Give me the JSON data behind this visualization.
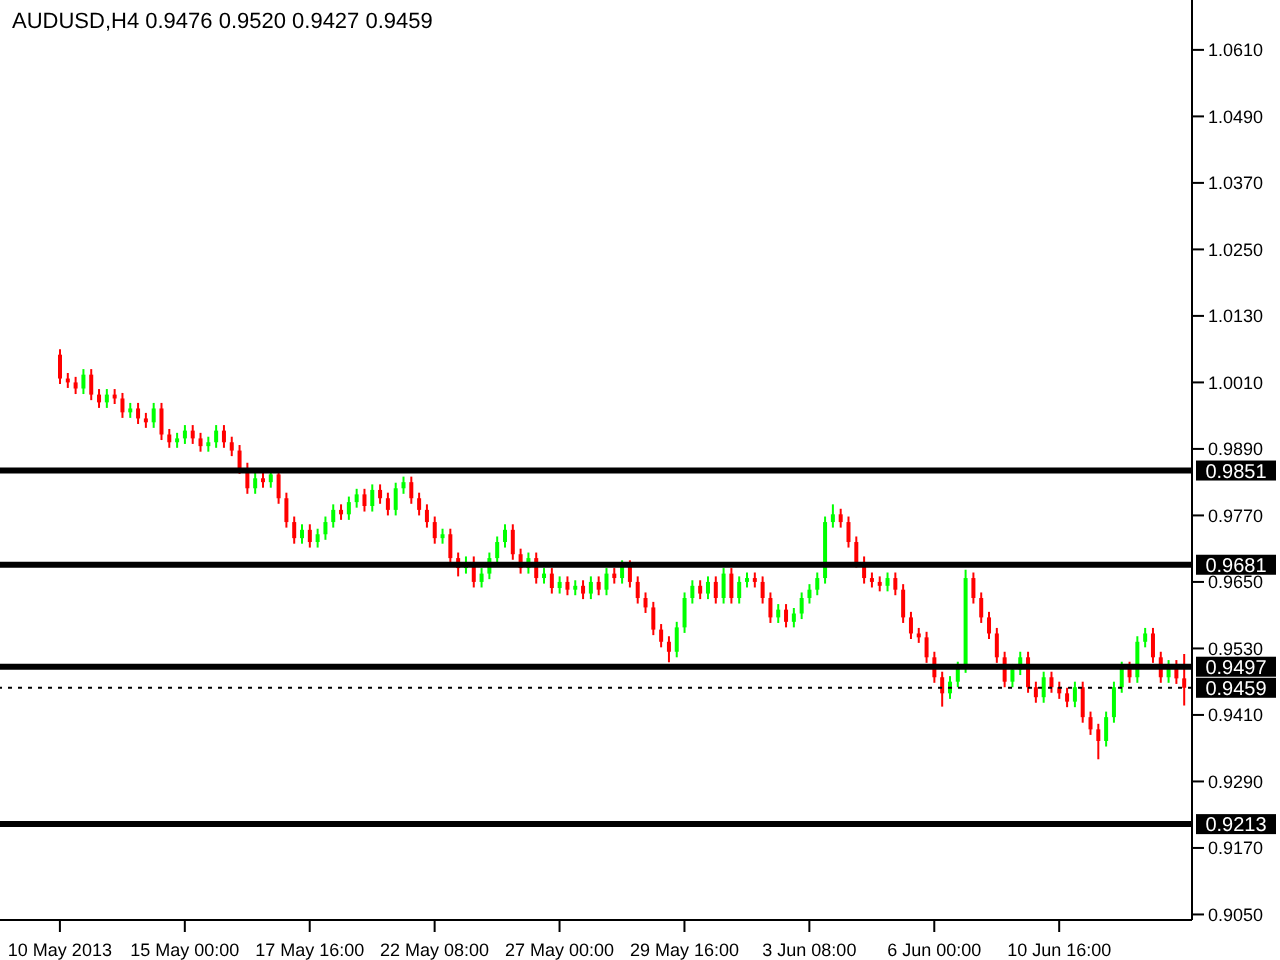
{
  "chart_data": {
    "type": "candlestick",
    "title": "AUDUSD,H4  0.9476 0.9520 0.9427 0.9459",
    "categories": [
      "10 May 2013",
      null,
      null,
      null,
      null,
      null,
      null,
      null,
      null,
      null,
      null,
      null,
      null,
      null,
      null,
      null,
      "15 May 00:00",
      null,
      null,
      null,
      null,
      null,
      null,
      null,
      null,
      null,
      null,
      null,
      null,
      null,
      null,
      null,
      "17 May 16:00",
      null,
      null,
      null,
      null,
      null,
      null,
      null,
      null,
      null,
      null,
      null,
      null,
      null,
      null,
      null,
      "22 May 08:00",
      null,
      null,
      null,
      null,
      null,
      null,
      null,
      null,
      null,
      null,
      null,
      null,
      null,
      null,
      null,
      "27 May 00:00",
      null,
      null,
      null,
      null,
      null,
      null,
      null,
      null,
      null,
      null,
      null,
      null,
      null,
      null,
      null,
      "29 May 16:00",
      null,
      null,
      null,
      null,
      null,
      null,
      null,
      null,
      null,
      null,
      null,
      null,
      null,
      null,
      null,
      "3 Jun 08:00",
      null,
      null,
      null,
      null,
      null,
      null,
      null,
      null,
      null,
      null,
      null,
      null,
      null,
      null,
      null,
      "6 Jun 00:00",
      null,
      null,
      null,
      null,
      null,
      null,
      null,
      null,
      null,
      null,
      null,
      null,
      null,
      null,
      null,
      "10 Jun 16:00",
      null,
      null,
      null,
      null,
      null,
      null,
      null,
      null,
      null,
      null,
      null,
      null,
      null,
      null,
      null,
      null
    ],
    "ohlc": [
      [
        1.006,
        1.007,
        1.0007,
        1.0017
      ],
      [
        1.0017,
        1.0027,
        1.0,
        1.001
      ],
      [
        1.001,
        1.002,
        0.9989,
        0.9999
      ],
      [
        0.9999,
        1.0034,
        0.9989,
        1.0024
      ],
      [
        1.0024,
        1.0034,
        0.9978,
        0.9988
      ],
      [
        0.9988,
        0.9998,
        0.9964,
        0.9974
      ],
      [
        0.9974,
        0.9998,
        0.9964,
        0.9988
      ],
      [
        0.9988,
        0.9998,
        0.9971,
        0.9981
      ],
      [
        0.9981,
        0.9991,
        0.9946,
        0.9956
      ],
      [
        0.9956,
        0.9973,
        0.9946,
        0.9963
      ],
      [
        0.9963,
        0.9973,
        0.9935,
        0.9945
      ],
      [
        0.9945,
        0.9955,
        0.9928,
        0.9938
      ],
      [
        0.9938,
        0.9973,
        0.9928,
        0.9963
      ],
      [
        0.9963,
        0.9973,
        0.9906,
        0.9916
      ],
      [
        0.9916,
        0.9926,
        0.9892,
        0.9902
      ],
      [
        0.9902,
        0.9919,
        0.9892,
        0.9909
      ],
      [
        0.9909,
        0.9933,
        0.9899,
        0.9923
      ],
      [
        0.9923,
        0.9933,
        0.9899,
        0.9909
      ],
      [
        0.9909,
        0.9919,
        0.9885,
        0.9895
      ],
      [
        0.9895,
        0.9912,
        0.9885,
        0.9902
      ],
      [
        0.9902,
        0.9933,
        0.9892,
        0.9923
      ],
      [
        0.9923,
        0.9933,
        0.9892,
        0.9902
      ],
      [
        0.9902,
        0.9912,
        0.9877,
        0.9887
      ],
      [
        0.9887,
        0.9897,
        0.9845,
        0.9855
      ],
      [
        0.9855,
        0.9865,
        0.9809,
        0.9819
      ],
      [
        0.9819,
        0.9847,
        0.9809,
        0.9837
      ],
      [
        0.9837,
        0.9847,
        0.982,
        0.983
      ],
      [
        0.983,
        0.9854,
        0.982,
        0.9844
      ],
      [
        0.9844,
        0.9854,
        0.9791,
        0.9801
      ],
      [
        0.9801,
        0.9811,
        0.9748,
        0.9758
      ],
      [
        0.9758,
        0.9768,
        0.9719,
        0.9729
      ],
      [
        0.9729,
        0.9754,
        0.9719,
        0.9744
      ],
      [
        0.9744,
        0.9754,
        0.9712,
        0.9722
      ],
      [
        0.9722,
        0.9746,
        0.9712,
        0.9736
      ],
      [
        0.9736,
        0.9768,
        0.9726,
        0.9758
      ],
      [
        0.9758,
        0.979,
        0.9748,
        0.978
      ],
      [
        0.978,
        0.979,
        0.9762,
        0.9772
      ],
      [
        0.9772,
        0.9804,
        0.9762,
        0.9794
      ],
      [
        0.9794,
        0.9818,
        0.9784,
        0.9808
      ],
      [
        0.9808,
        0.9818,
        0.9777,
        0.9787
      ],
      [
        0.9787,
        0.9826,
        0.9777,
        0.9816
      ],
      [
        0.9816,
        0.9826,
        0.9791,
        0.9801
      ],
      [
        0.9801,
        0.9811,
        0.977,
        0.978
      ],
      [
        0.978,
        0.9829,
        0.977,
        0.9819
      ],
      [
        0.9819,
        0.984,
        0.9809,
        0.983
      ],
      [
        0.983,
        0.984,
        0.9791,
        0.9801
      ],
      [
        0.9801,
        0.9811,
        0.977,
        0.978
      ],
      [
        0.978,
        0.979,
        0.9748,
        0.9758
      ],
      [
        0.9758,
        0.9768,
        0.9719,
        0.9729
      ],
      [
        0.9729,
        0.9746,
        0.9719,
        0.9736
      ],
      [
        0.9736,
        0.9746,
        0.9683,
        0.9693
      ],
      [
        0.9693,
        0.9703,
        0.966,
        0.9675
      ],
      [
        0.9675,
        0.9696,
        0.9665,
        0.9686
      ],
      [
        0.9686,
        0.9696,
        0.964,
        0.965
      ],
      [
        0.965,
        0.9675,
        0.964,
        0.9665
      ],
      [
        0.9665,
        0.9703,
        0.9655,
        0.9693
      ],
      [
        0.9693,
        0.9732,
        0.9683,
        0.9722
      ],
      [
        0.9722,
        0.9754,
        0.9712,
        0.9744
      ],
      [
        0.9744,
        0.9754,
        0.969,
        0.97
      ],
      [
        0.97,
        0.971,
        0.9665,
        0.9675
      ],
      [
        0.9675,
        0.9703,
        0.9665,
        0.9693
      ],
      [
        0.9693,
        0.9703,
        0.9647,
        0.9657
      ],
      [
        0.9657,
        0.9675,
        0.9647,
        0.9665
      ],
      [
        0.9665,
        0.9675,
        0.9629,
        0.9639
      ],
      [
        0.9639,
        0.966,
        0.9629,
        0.965
      ],
      [
        0.965,
        0.966,
        0.9626,
        0.9636
      ],
      [
        0.9636,
        0.9653,
        0.9626,
        0.9643
      ],
      [
        0.9643,
        0.9653,
        0.9619,
        0.9629
      ],
      [
        0.9629,
        0.966,
        0.9619,
        0.965
      ],
      [
        0.965,
        0.966,
        0.9626,
        0.9636
      ],
      [
        0.9636,
        0.9675,
        0.9626,
        0.9665
      ],
      [
        0.9665,
        0.9675,
        0.9647,
        0.9657
      ],
      [
        0.9657,
        0.9689,
        0.9647,
        0.9679
      ],
      [
        0.9679,
        0.9689,
        0.964,
        0.965
      ],
      [
        0.965,
        0.966,
        0.9611,
        0.9621
      ],
      [
        0.9621,
        0.9631,
        0.9594,
        0.9604
      ],
      [
        0.9604,
        0.9614,
        0.9554,
        0.9564
      ],
      [
        0.9564,
        0.9574,
        0.9532,
        0.9542
      ],
      [
        0.9542,
        0.9552,
        0.9505,
        0.9524
      ],
      [
        0.9524,
        0.9578,
        0.9514,
        0.9568
      ],
      [
        0.9568,
        0.9631,
        0.9558,
        0.9621
      ],
      [
        0.9621,
        0.9653,
        0.9611,
        0.9643
      ],
      [
        0.9643,
        0.9653,
        0.9619,
        0.9629
      ],
      [
        0.9629,
        0.966,
        0.9619,
        0.965
      ],
      [
        0.965,
        0.966,
        0.9611,
        0.9621
      ],
      [
        0.9621,
        0.9675,
        0.9611,
        0.9665
      ],
      [
        0.9665,
        0.9675,
        0.9611,
        0.9621
      ],
      [
        0.9621,
        0.966,
        0.9611,
        0.965
      ],
      [
        0.965,
        0.9667,
        0.964,
        0.9657
      ],
      [
        0.9657,
        0.9667,
        0.964,
        0.965
      ],
      [
        0.965,
        0.966,
        0.9611,
        0.9621
      ],
      [
        0.9621,
        0.9631,
        0.9576,
        0.9586
      ],
      [
        0.9586,
        0.961,
        0.9576,
        0.96
      ],
      [
        0.96,
        0.961,
        0.9568,
        0.9578
      ],
      [
        0.9578,
        0.9603,
        0.9568,
        0.9593
      ],
      [
        0.9593,
        0.9631,
        0.9583,
        0.9621
      ],
      [
        0.9621,
        0.9646,
        0.9611,
        0.9636
      ],
      [
        0.9636,
        0.9667,
        0.9626,
        0.9657
      ],
      [
        0.9657,
        0.9768,
        0.9647,
        0.9758
      ],
      [
        0.9758,
        0.979,
        0.9748,
        0.9772
      ],
      [
        0.9772,
        0.9782,
        0.9748,
        0.9758
      ],
      [
        0.9758,
        0.9768,
        0.9712,
        0.9722
      ],
      [
        0.9722,
        0.9732,
        0.9676,
        0.9686
      ],
      [
        0.9686,
        0.9696,
        0.9647,
        0.9657
      ],
      [
        0.9657,
        0.9667,
        0.964,
        0.965
      ],
      [
        0.965,
        0.966,
        0.9633,
        0.9643
      ],
      [
        0.9643,
        0.9667,
        0.9633,
        0.9657
      ],
      [
        0.9657,
        0.9667,
        0.9626,
        0.9636
      ],
      [
        0.9636,
        0.9646,
        0.9576,
        0.9586
      ],
      [
        0.9586,
        0.9596,
        0.9547,
        0.9557
      ],
      [
        0.9557,
        0.9567,
        0.954,
        0.955
      ],
      [
        0.955,
        0.956,
        0.9504,
        0.9514
      ],
      [
        0.9514,
        0.9524,
        0.9468,
        0.9478
      ],
      [
        0.9478,
        0.9488,
        0.9425,
        0.9449
      ],
      [
        0.9449,
        0.948,
        0.9439,
        0.947
      ],
      [
        0.947,
        0.9506,
        0.946,
        0.9496
      ],
      [
        0.9496,
        0.9672,
        0.9486,
        0.9657
      ],
      [
        0.9657,
        0.9667,
        0.9611,
        0.9621
      ],
      [
        0.9621,
        0.9631,
        0.9576,
        0.9586
      ],
      [
        0.9586,
        0.9596,
        0.9547,
        0.9557
      ],
      [
        0.9557,
        0.9567,
        0.9504,
        0.9514
      ],
      [
        0.9514,
        0.9524,
        0.946,
        0.947
      ],
      [
        0.947,
        0.9502,
        0.946,
        0.9492
      ],
      [
        0.9492,
        0.9524,
        0.9482,
        0.9514
      ],
      [
        0.9514,
        0.9524,
        0.945,
        0.946
      ],
      [
        0.946,
        0.947,
        0.9432,
        0.9442
      ],
      [
        0.9442,
        0.9488,
        0.9432,
        0.9478
      ],
      [
        0.9478,
        0.9488,
        0.945,
        0.946
      ],
      [
        0.946,
        0.947,
        0.9439,
        0.9449
      ],
      [
        0.9449,
        0.9459,
        0.9424,
        0.9434
      ],
      [
        0.9434,
        0.947,
        0.9424,
        0.946
      ],
      [
        0.946,
        0.947,
        0.9396,
        0.9406
      ],
      [
        0.9406,
        0.9416,
        0.9374,
        0.9384
      ],
      [
        0.9384,
        0.9394,
        0.933,
        0.9363
      ],
      [
        0.9363,
        0.9416,
        0.9353,
        0.9406
      ],
      [
        0.9406,
        0.947,
        0.9396,
        0.946
      ],
      [
        0.946,
        0.9506,
        0.945,
        0.9496
      ],
      [
        0.9496,
        0.9506,
        0.9468,
        0.9478
      ],
      [
        0.9478,
        0.9552,
        0.9468,
        0.9542
      ],
      [
        0.9542,
        0.9567,
        0.9532,
        0.9557
      ],
      [
        0.9557,
        0.9567,
        0.9504,
        0.9514
      ],
      [
        0.9514,
        0.9524,
        0.9468,
        0.9478
      ],
      [
        0.9478,
        0.9509,
        0.9468,
        0.9499
      ],
      [
        0.9499,
        0.9509,
        0.9466,
        0.9476
      ],
      [
        0.9476,
        0.952,
        0.9427,
        0.9459
      ]
    ],
    "colors": [
      "#ff0000",
      "#ff0000",
      "#ff0000",
      "#00ff00",
      "#ff0000",
      "#ff0000",
      "#00ff00",
      "#ff0000",
      "#ff0000",
      "#00ff00",
      "#ff0000",
      "#ff0000",
      "#00ff00",
      "#ff0000",
      "#ff0000",
      "#00ff00",
      "#00ff00",
      "#ff0000",
      "#ff0000",
      "#00ff00",
      "#00ff00",
      "#ff0000",
      "#ff0000",
      "#ff0000",
      "#ff0000",
      "#00ff00",
      "#ff0000",
      "#00ff00",
      "#ff0000",
      "#ff0000",
      "#ff0000",
      "#00ff00",
      "#ff0000",
      "#00ff00",
      "#00ff00",
      "#00ff00",
      "#ff0000",
      "#00ff00",
      "#00ff00",
      "#ff0000",
      "#00ff00",
      "#ff0000",
      "#ff0000",
      "#00ff00",
      "#00ff00",
      "#ff0000",
      "#ff0000",
      "#ff0000",
      "#ff0000",
      "#00ff00",
      "#ff0000",
      "#ff0000",
      "#00ff00",
      "#ff0000",
      "#00ff00",
      "#00ff00",
      "#00ff00",
      "#00ff00",
      "#ff0000",
      "#ff0000",
      "#00ff00",
      "#ff0000",
      "#00ff00",
      "#ff0000",
      "#00ff00",
      "#ff0000",
      "#00ff00",
      "#ff0000",
      "#00ff00",
      "#ff0000",
      "#00ff00",
      "#ff0000",
      "#00ff00",
      "#ff0000",
      "#ff0000",
      "#ff0000",
      "#ff0000",
      "#ff0000",
      "#ff0000",
      "#00ff00",
      "#00ff00",
      "#00ff00",
      "#ff0000",
      "#00ff00",
      "#ff0000",
      "#00ff00",
      "#ff0000",
      "#00ff00",
      "#00ff00",
      "#ff0000",
      "#ff0000",
      "#ff0000",
      "#00ff00",
      "#ff0000",
      "#00ff00",
      "#00ff00",
      "#00ff00",
      "#00ff00",
      "#00ff00",
      "#00ff00",
      "#ff0000",
      "#ff0000",
      "#ff0000",
      "#ff0000",
      "#ff0000",
      "#ff0000",
      "#00ff00",
      "#ff0000",
      "#ff0000",
      "#ff0000",
      "#ff0000",
      "#ff0000",
      "#ff0000",
      "#ff0000",
      "#00ff00",
      "#00ff00",
      "#00ff00",
      "#ff0000",
      "#ff0000",
      "#ff0000",
      "#ff0000",
      "#ff0000",
      "#00ff00",
      "#00ff00",
      "#ff0000",
      "#ff0000",
      "#00ff00",
      "#ff0000",
      "#ff0000",
      "#ff0000",
      "#00ff00",
      "#ff0000",
      "#ff0000",
      "#ff0000",
      "#00ff00",
      "#00ff00",
      "#00ff00",
      "#ff0000",
      "#00ff00",
      "#00ff00",
      "#ff0000",
      "#ff0000",
      "#00ff00",
      "#ff0000",
      "#ff0000"
    ],
    "ylim": [
      0.904,
      1.07
    ],
    "yticks": [
      {
        "value": 1.061,
        "label": "1.0610"
      },
      {
        "value": 1.049,
        "label": "1.0490"
      },
      {
        "value": 1.037,
        "label": "1.0370"
      },
      {
        "value": 1.025,
        "label": "1.0250"
      },
      {
        "value": 1.013,
        "label": "1.0130"
      },
      {
        "value": 1.001,
        "label": "1.0010"
      },
      {
        "value": 0.989,
        "label": "0.9890"
      },
      {
        "value": 0.977,
        "label": "0.9770"
      },
      {
        "value": 0.965,
        "label": "0.9650"
      },
      {
        "value": 0.953,
        "label": "0.9530"
      },
      {
        "value": 0.941,
        "label": "0.9410"
      },
      {
        "value": 0.929,
        "label": "0.9290"
      },
      {
        "value": 0.917,
        "label": "0.9170"
      },
      {
        "value": 0.905,
        "label": "0.9050"
      }
    ],
    "ref_lines": [
      {
        "axis": "y",
        "value": 0.9851,
        "label": "0.9851",
        "color": "#000000"
      },
      {
        "axis": "y",
        "value": 0.9681,
        "label": "0.9681",
        "color": "#000000"
      },
      {
        "axis": "y",
        "value": 0.9497,
        "label": "0.9497",
        "color": "#000000"
      },
      {
        "axis": "y",
        "value": 0.9459,
        "label": "0.9459",
        "color": "#000000",
        "line_style": "dotted"
      },
      {
        "axis": "y",
        "value": 0.9213,
        "label": "0.9213",
        "color": "#000000"
      }
    ]
  }
}
